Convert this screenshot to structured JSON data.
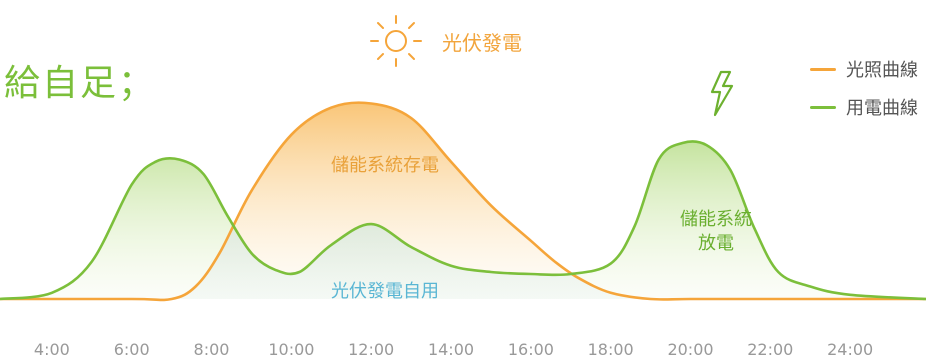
{
  "heading": "給自足；",
  "colors": {
    "solar": "#f5a53a",
    "usage": "#7cbf3b",
    "selfuse": "#7ec7de"
  },
  "icons": {
    "sun": "sun-icon",
    "lightning": "lightning-icon"
  },
  "labels": {
    "sun": "光伏發電",
    "store": "儲能系統存電",
    "selfuse": "光伏發電自用",
    "discharge_line1": "儲能系統",
    "discharge_line2": "放電"
  },
  "chart_data": {
    "type": "area",
    "legend_position": "top-right",
    "grid": false,
    "x_unit": "hour",
    "xlim": [
      2.7,
      25.9
    ],
    "ylim": [
      0,
      100
    ],
    "x_tick_labels": [
      "4:00",
      "6:00",
      "8:00",
      "10:00",
      "12:00",
      "14:00",
      "16:00",
      "18:00",
      "20:00",
      "22:00",
      "24:00"
    ],
    "series": [
      {
        "name": "光照曲線",
        "x": [
          2.7,
          6,
          7,
          7.6,
          8.2,
          9,
          10,
          11,
          12,
          13,
          14,
          15,
          16,
          16.6,
          17.2,
          18,
          19,
          20,
          22,
          25.9
        ],
        "values": [
          0,
          0,
          0,
          6,
          22,
          52,
          79,
          92,
          94,
          87,
          66,
          45,
          28,
          18,
          10,
          3,
          0,
          0,
          0,
          0
        ]
      },
      {
        "name": "用電曲線",
        "x": [
          2.7,
          4,
          5,
          6,
          6.6,
          7.2,
          7.8,
          8.4,
          9,
          9.6,
          10.2,
          11,
          12,
          13,
          14,
          15,
          16,
          17,
          18,
          18.6,
          19.2,
          19.8,
          20.4,
          21,
          21.6,
          22.2,
          23,
          24,
          25.9
        ],
        "values": [
          0,
          3,
          18,
          55,
          66,
          67,
          60,
          40,
          22,
          14,
          13,
          26,
          36,
          25,
          16,
          13,
          12,
          12,
          17,
          35,
          67,
          75,
          74,
          62,
          34,
          13,
          6,
          2,
          0
        ]
      }
    ]
  }
}
